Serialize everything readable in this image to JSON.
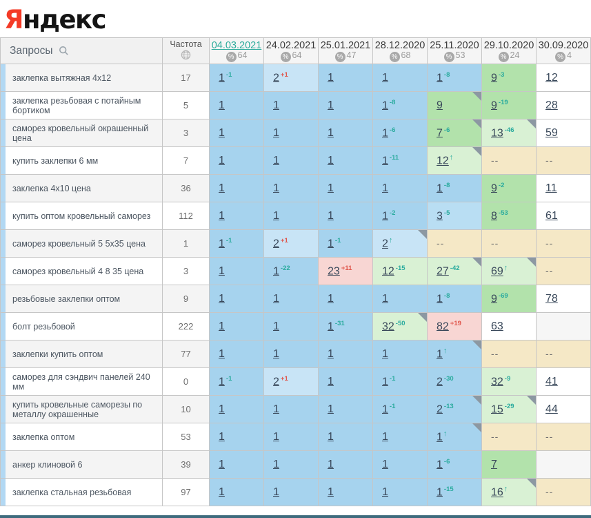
{
  "logo": {
    "first_letter": "Я",
    "rest": "ндекс"
  },
  "icons": {
    "percent": "%",
    "up_arrow": "↑"
  },
  "colors": {
    "bg": {
      "b1": "#a6d3ee",
      "b2": "#c8e4f6",
      "b3": "#b9def3",
      "g": "#b2e2ab",
      "m": "#d9f1d4",
      "p": "#f8d6d3",
      "t": "#f5e8c6",
      "e": "#f6f6f6",
      "w": "#ffffff"
    },
    "change_up": "#2aab9e",
    "change_down": "#e0564c",
    "active_date": "#2bab9b",
    "accent_bar": "#b2d8f3",
    "bottom_bar": "#3e6b7d"
  },
  "table": {
    "queries_header": "Запросы",
    "frequency_header": "Частота",
    "columns": [
      {
        "date": "04.03.2021",
        "visibility": "64",
        "active": true
      },
      {
        "date": "24.02.2021",
        "visibility": "64",
        "active": false
      },
      {
        "date": "25.01.2021",
        "visibility": "47",
        "active": false
      },
      {
        "date": "28.12.2020",
        "visibility": "68",
        "active": false
      },
      {
        "date": "25.11.2020",
        "visibility": "53",
        "active": false
      },
      {
        "date": "29.10.2020",
        "visibility": "24",
        "active": false
      },
      {
        "date": "30.09.2020",
        "visibility": "4",
        "active": false
      }
    ],
    "rows": [
      {
        "query": "заклепка вытяжная 4х12",
        "frequency": "17",
        "cells": [
          {
            "value": "1",
            "change": "-1",
            "bg": "b1"
          },
          {
            "value": "2",
            "change": "+1",
            "bg": "b2"
          },
          {
            "value": "1",
            "bg": "b1"
          },
          {
            "value": "1",
            "bg": "b1"
          },
          {
            "value": "1",
            "change": "-8",
            "bg": "b1"
          },
          {
            "value": "9",
            "change": "-3",
            "bg": "g"
          },
          {
            "value": "12",
            "bg": "w"
          }
        ]
      },
      {
        "query": "заклепка резьбовая с потайным бортиком",
        "frequency": "5",
        "cells": [
          {
            "value": "1",
            "bg": "b1"
          },
          {
            "value": "1",
            "bg": "b1"
          },
          {
            "value": "1",
            "bg": "b1"
          },
          {
            "value": "1",
            "change": "-8",
            "bg": "b1"
          },
          {
            "value": "9",
            "bg": "g",
            "note": true
          },
          {
            "value": "9",
            "change": "-19",
            "bg": "g"
          },
          {
            "value": "28",
            "bg": "w"
          }
        ]
      },
      {
        "query": "саморез кровельный окрашенный цена",
        "frequency": "3",
        "cells": [
          {
            "value": "1",
            "bg": "b1"
          },
          {
            "value": "1",
            "bg": "b1"
          },
          {
            "value": "1",
            "bg": "b1"
          },
          {
            "value": "1",
            "change": "-6",
            "bg": "b1"
          },
          {
            "value": "7",
            "change": "-6",
            "bg": "g",
            "note": true
          },
          {
            "value": "13",
            "change": "-46",
            "bg": "m",
            "note": true
          },
          {
            "value": "59",
            "bg": "w"
          }
        ]
      },
      {
        "query": "купить заклепки 6 мм",
        "frequency": "7",
        "cells": [
          {
            "value": "1",
            "bg": "b1"
          },
          {
            "value": "1",
            "bg": "b1"
          },
          {
            "value": "1",
            "bg": "b1"
          },
          {
            "value": "1",
            "change": "-11",
            "bg": "b1"
          },
          {
            "value": "12",
            "arrow": true,
            "bg": "m",
            "note": true
          },
          {
            "value": "--",
            "bg": "t"
          },
          {
            "value": "--",
            "bg": "t"
          }
        ]
      },
      {
        "query": "заклепка 4х10 цена",
        "frequency": "36",
        "cells": [
          {
            "value": "1",
            "bg": "b1"
          },
          {
            "value": "1",
            "bg": "b1"
          },
          {
            "value": "1",
            "bg": "b1"
          },
          {
            "value": "1",
            "bg": "b1"
          },
          {
            "value": "1",
            "change": "-8",
            "bg": "b1"
          },
          {
            "value": "9",
            "change": "-2",
            "bg": "g"
          },
          {
            "value": "11",
            "bg": "w"
          }
        ]
      },
      {
        "query": "купить оптом кровельный саморез",
        "frequency": "112",
        "cells": [
          {
            "value": "1",
            "bg": "b1"
          },
          {
            "value": "1",
            "bg": "b1"
          },
          {
            "value": "1",
            "bg": "b1"
          },
          {
            "value": "1",
            "change": "-2",
            "bg": "b1"
          },
          {
            "value": "3",
            "change": "-5",
            "bg": "b3"
          },
          {
            "value": "8",
            "change": "-53",
            "bg": "g"
          },
          {
            "value": "61",
            "bg": "w"
          }
        ]
      },
      {
        "query": "саморез кровельный 5 5х35 цена",
        "frequency": "1",
        "cells": [
          {
            "value": "1",
            "change": "-1",
            "bg": "b1"
          },
          {
            "value": "2",
            "change": "+1",
            "bg": "b2"
          },
          {
            "value": "1",
            "change": "-1",
            "bg": "b1"
          },
          {
            "value": "2",
            "arrow": true,
            "bg": "b2",
            "note": true
          },
          {
            "value": "--",
            "bg": "t"
          },
          {
            "value": "--",
            "bg": "t"
          },
          {
            "value": "--",
            "bg": "t"
          }
        ]
      },
      {
        "query": "саморез кровельный 4 8 35 цена",
        "frequency": "3",
        "cells": [
          {
            "value": "1",
            "bg": "b1"
          },
          {
            "value": "1",
            "change": "-22",
            "bg": "b1"
          },
          {
            "value": "23",
            "change": "+11",
            "bg": "p"
          },
          {
            "value": "12",
            "change": "-15",
            "bg": "m"
          },
          {
            "value": "27",
            "change": "-42",
            "bg": "m",
            "note": true
          },
          {
            "value": "69",
            "arrow": true,
            "bg": "m",
            "note": true
          },
          {
            "value": "--",
            "bg": "t"
          }
        ]
      },
      {
        "query": "резьбовые заклепки оптом",
        "frequency": "9",
        "cells": [
          {
            "value": "1",
            "bg": "b1"
          },
          {
            "value": "1",
            "bg": "b1"
          },
          {
            "value": "1",
            "bg": "b1"
          },
          {
            "value": "1",
            "bg": "b1"
          },
          {
            "value": "1",
            "change": "-8",
            "bg": "b1"
          },
          {
            "value": "9",
            "change": "-69",
            "bg": "g"
          },
          {
            "value": "78",
            "bg": "w"
          }
        ]
      },
      {
        "query": "болт резьбовой",
        "frequency": "222",
        "cells": [
          {
            "value": "1",
            "bg": "b1"
          },
          {
            "value": "1",
            "bg": "b1"
          },
          {
            "value": "1",
            "change": "-31",
            "bg": "b1"
          },
          {
            "value": "32",
            "change": "-50",
            "bg": "m",
            "note": true
          },
          {
            "value": "82",
            "change": "+19",
            "bg": "p"
          },
          {
            "value": "63",
            "bg": "w"
          },
          {
            "value": "",
            "bg": "e"
          }
        ]
      },
      {
        "query": "заклепки купить оптом",
        "frequency": "77",
        "cells": [
          {
            "value": "1",
            "bg": "b1"
          },
          {
            "value": "1",
            "bg": "b1"
          },
          {
            "value": "1",
            "bg": "b1"
          },
          {
            "value": "1",
            "bg": "b1"
          },
          {
            "value": "1",
            "arrow": true,
            "bg": "b1",
            "note": true
          },
          {
            "value": "--",
            "bg": "t"
          },
          {
            "value": "--",
            "bg": "t"
          }
        ]
      },
      {
        "query": "саморез для сэндвич панелей 240 мм",
        "frequency": "0",
        "cells": [
          {
            "value": "1",
            "change": "-1",
            "bg": "b1"
          },
          {
            "value": "2",
            "change": "+1",
            "bg": "b2"
          },
          {
            "value": "1",
            "bg": "b1"
          },
          {
            "value": "1",
            "change": "-1",
            "bg": "b1"
          },
          {
            "value": "2",
            "change": "-30",
            "bg": "b1"
          },
          {
            "value": "32",
            "change": "-9",
            "bg": "m"
          },
          {
            "value": "41",
            "bg": "w"
          }
        ]
      },
      {
        "query": "купить кровельные саморезы по металлу окрашенные",
        "frequency": "10",
        "cells": [
          {
            "value": "1",
            "bg": "b1"
          },
          {
            "value": "1",
            "bg": "b1"
          },
          {
            "value": "1",
            "bg": "b1"
          },
          {
            "value": "1",
            "change": "-1",
            "bg": "b1"
          },
          {
            "value": "2",
            "change": "-13",
            "bg": "b1",
            "note": true
          },
          {
            "value": "15",
            "change": "-29",
            "bg": "m",
            "note": true
          },
          {
            "value": "44",
            "bg": "w"
          }
        ]
      },
      {
        "query": "заклепка оптом",
        "frequency": "53",
        "cells": [
          {
            "value": "1",
            "bg": "b1"
          },
          {
            "value": "1",
            "bg": "b1"
          },
          {
            "value": "1",
            "bg": "b1"
          },
          {
            "value": "1",
            "bg": "b1"
          },
          {
            "value": "1",
            "arrow": true,
            "bg": "b1",
            "note": true
          },
          {
            "value": "--",
            "bg": "t"
          },
          {
            "value": "--",
            "bg": "t"
          }
        ]
      },
      {
        "query": "анкер клиновой 6",
        "frequency": "39",
        "cells": [
          {
            "value": "1",
            "bg": "b1"
          },
          {
            "value": "1",
            "bg": "b1"
          },
          {
            "value": "1",
            "bg": "b1"
          },
          {
            "value": "1",
            "bg": "b1"
          },
          {
            "value": "1",
            "change": "-6",
            "bg": "b1"
          },
          {
            "value": "7",
            "bg": "g"
          },
          {
            "value": "",
            "bg": "e"
          }
        ]
      },
      {
        "query": "заклепка стальная резьбовая",
        "frequency": "97",
        "cells": [
          {
            "value": "1",
            "bg": "b1"
          },
          {
            "value": "1",
            "bg": "b1"
          },
          {
            "value": "1",
            "bg": "b1"
          },
          {
            "value": "1",
            "bg": "b1"
          },
          {
            "value": "1",
            "change": "-15",
            "bg": "b1"
          },
          {
            "value": "16",
            "arrow": true,
            "bg": "m",
            "note": true
          },
          {
            "value": "--",
            "bg": "t"
          }
        ]
      }
    ]
  }
}
